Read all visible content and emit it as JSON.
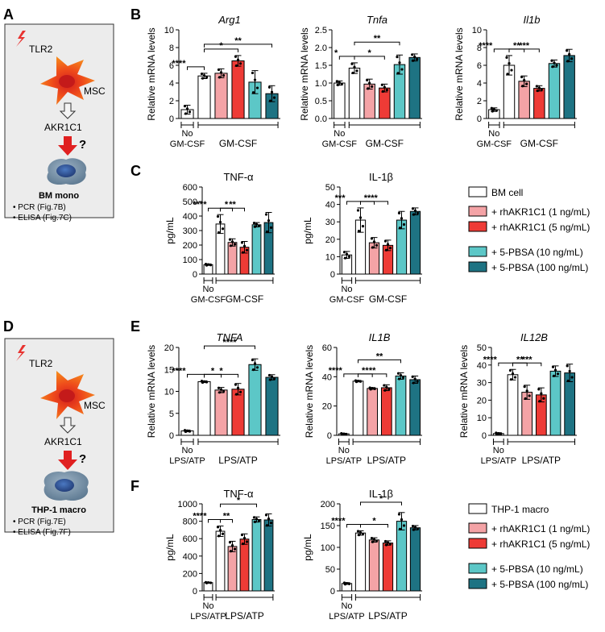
{
  "panels": {
    "A": {
      "letter": "A",
      "top_label": "TLR2",
      "mid_label": "MSC",
      "gene": "AKR1C1",
      "question": "?",
      "cell_name": "BM mono",
      "bullets": [
        "PCR (Fig.7B)",
        "ELISA (Fig.7C)"
      ]
    },
    "D": {
      "letter": "D",
      "top_label": "TLR2",
      "mid_label": "MSC",
      "gene": "AKR1C1",
      "question": "?",
      "cell_name": "THP-1 macro",
      "bullets": [
        "PCR (Fig.7E)",
        "ELISA (Fig.7F)"
      ]
    }
  },
  "legends": [
    {
      "items": [
        "BM cell",
        "+ rhAKR1C1 (1 ng/mL)",
        "+ rhAKR1C1 (5 ng/mL)",
        "+ 5-PBSA (10 ng/mL)",
        "+ 5-PBSA (100 ng/mL)"
      ]
    },
    {
      "items": [
        "THP-1 macro",
        "+ rhAKR1C1 (1 ng/mL)",
        "+ rhAKR1C1 (5 ng/mL)",
        "+ 5-PBSA (10 ng/mL)",
        "+ 5-PBSA (100 ng/mL)"
      ]
    }
  ],
  "colors": [
    "#ffffff",
    "#f4a3a6",
    "#ee3b36",
    "#5cc7c7",
    "#1e7383"
  ],
  "chart_data": [
    {
      "panel": "B",
      "type": "bar",
      "title": "Arg1",
      "title_italic": true,
      "ylabel": "Relative mRNA levels",
      "ylim": [
        0,
        10
      ],
      "yticks": [
        0,
        2,
        4,
        6,
        8,
        10
      ],
      "values": [
        1.0,
        4.8,
        5.1,
        6.5,
        4.1,
        2.8
      ],
      "errors": [
        0.5,
        0.3,
        0.5,
        0.6,
        1.3,
        0.9
      ],
      "control_label": "No GM-CSF",
      "treatment_label": "GM-CSF",
      "significance": [
        {
          "from": 1,
          "to": 3,
          "text": "*"
        },
        {
          "from": 1,
          "to": 5,
          "text": "**"
        },
        {
          "from": 0,
          "to": 1,
          "text": "****"
        }
      ]
    },
    {
      "panel": "B",
      "type": "bar",
      "title": "Tnfa",
      "title_italic": true,
      "ylabel": "Relative mRNA levels",
      "ylim": [
        0,
        2.5
      ],
      "yticks": [
        0,
        0.5,
        1.0,
        1.5,
        2.0,
        2.5
      ],
      "values": [
        1.0,
        1.42,
        0.97,
        0.86,
        1.52,
        1.72
      ],
      "errors": [
        0.06,
        0.15,
        0.14,
        0.11,
        0.27,
        0.1
      ],
      "control_label": "No GM-CSF",
      "treatment_label": "GM-CSF",
      "significance": [
        {
          "from": 1,
          "to": 4,
          "text": "**"
        },
        {
          "from": 0,
          "to": 1,
          "text": "*"
        },
        {
          "from": 1,
          "to": 3,
          "text": "*"
        }
      ]
    },
    {
      "panel": "B",
      "type": "bar",
      "title": "Il1b",
      "title_italic": true,
      "ylabel": "Relative mRNA levels",
      "ylim": [
        0,
        10
      ],
      "yticks": [
        0,
        2,
        4,
        6,
        8,
        10
      ],
      "values": [
        1.0,
        6.0,
        4.2,
        3.4,
        6.2,
        7.1
      ],
      "errors": [
        0.2,
        1.1,
        0.6,
        0.3,
        0.4,
        0.7
      ],
      "control_label": "No GM-CSF",
      "treatment_label": "GM-CSF",
      "significance": [
        {
          "from": 1,
          "to": 3,
          "text": "***"
        },
        {
          "from": 0,
          "to": 1,
          "text": "****"
        },
        {
          "from": 1,
          "to": 2,
          "text": "**"
        }
      ]
    },
    {
      "panel": "C",
      "type": "bar",
      "title": "TNF-α",
      "title_italic": false,
      "ylabel": "pg/mL",
      "ylim": [
        0,
        600
      ],
      "yticks": [
        0,
        100,
        200,
        300,
        400,
        500,
        600
      ],
      "values": [
        65,
        345,
        218,
        185,
        340,
        355
      ],
      "errors": [
        5,
        65,
        25,
        40,
        15,
        70
      ],
      "control_label": "No GM-CSF",
      "treatment_label": "GM-CSF",
      "significance": [
        {
          "from": 1,
          "to": 3,
          "text": "**"
        },
        {
          "from": 0,
          "to": 1,
          "text": "****"
        },
        {
          "from": 1,
          "to": 2,
          "text": "*"
        }
      ]
    },
    {
      "panel": "C",
      "type": "bar",
      "title": "IL-1β",
      "title_italic": false,
      "ylabel": "pg/mL",
      "ylim": [
        0,
        50
      ],
      "yticks": [
        0,
        10,
        20,
        30,
        40,
        50
      ],
      "values": [
        11,
        31,
        18,
        16.5,
        31,
        36
      ],
      "errors": [
        2,
        7,
        3,
        3,
        5,
        2
      ],
      "control_label": "No GM-CSF",
      "treatment_label": "GM-CSF",
      "significance": [
        {
          "from": 1,
          "to": 3,
          "text": "**"
        },
        {
          "from": 0,
          "to": 1,
          "text": "***"
        },
        {
          "from": 1,
          "to": 2,
          "text": "**"
        }
      ]
    },
    {
      "panel": "E",
      "type": "bar",
      "title": "TNFA",
      "title_italic": true,
      "ylabel": "Relative mRNA levels",
      "ylim": [
        0,
        20
      ],
      "yticks": [
        0,
        5,
        10,
        15,
        20
      ],
      "values": [
        1.0,
        12.2,
        10.3,
        10.5,
        16.1,
        13.2
      ],
      "errors": [
        0.2,
        0.2,
        0.6,
        1.3,
        1.3,
        0.6
      ],
      "control_label": "No LPS/ATP",
      "treatment_label": "LPS/ATP",
      "significance": [
        {
          "from": 1,
          "to": 4,
          "text": "****"
        },
        {
          "from": 1,
          "to": 3,
          "text": "*"
        },
        {
          "from": 0,
          "to": 1,
          "text": "****"
        },
        {
          "from": 1,
          "to": 2,
          "text": "*"
        }
      ]
    },
    {
      "panel": "E",
      "type": "bar",
      "title": "IL1B",
      "title_italic": true,
      "ylabel": "Relative mRNA levels",
      "ylim": [
        0,
        60
      ],
      "yticks": [
        0,
        20,
        40,
        60
      ],
      "values": [
        1.0,
        37,
        32,
        32.5,
        40.5,
        38
      ],
      "errors": [
        0.4,
        0.5,
        0.6,
        2.0,
        2.2,
        2.5
      ],
      "control_label": "No LPS/ATP",
      "treatment_label": "LPS/ATP",
      "significance": [
        {
          "from": 1,
          "to": 4,
          "text": "**"
        },
        {
          "from": 1,
          "to": 3,
          "text": "**"
        },
        {
          "from": 0,
          "to": 1,
          "text": "****"
        },
        {
          "from": 1,
          "to": 2,
          "text": "**"
        }
      ]
    },
    {
      "panel": "E",
      "type": "bar",
      "title": "IL12B",
      "title_italic": true,
      "ylabel": "Relative mRNA levels",
      "ylim": [
        0,
        50
      ],
      "yticks": [
        0,
        10,
        20,
        30,
        40,
        50
      ],
      "values": [
        1.0,
        34.5,
        24.5,
        23,
        36.5,
        35.5
      ],
      "errors": [
        0.5,
        3,
        4,
        4,
        3,
        5
      ],
      "control_label": "No LPS/ATP",
      "treatment_label": "LPS/ATP",
      "significance": [
        {
          "from": 1,
          "to": 3,
          "text": "***"
        },
        {
          "from": 0,
          "to": 1,
          "text": "****"
        },
        {
          "from": 1,
          "to": 2,
          "text": "**"
        }
      ]
    },
    {
      "panel": "F",
      "type": "bar",
      "title": "TNF-α",
      "title_italic": false,
      "ylabel": "pg/mL",
      "ylim": [
        0,
        1000
      ],
      "yticks": [
        0,
        200,
        400,
        600,
        800,
        1000
      ],
      "values": [
        95,
        685,
        510,
        595,
        820,
        815
      ],
      "errors": [
        5,
        60,
        60,
        60,
        30,
        70
      ],
      "control_label": "No LPS/ATP",
      "treatment_label": "LPS/ATP",
      "significance": [
        {
          "from": 1,
          "to": 4,
          "text": "*"
        },
        {
          "from": 0,
          "to": 1,
          "text": "****"
        },
        {
          "from": 1,
          "to": 2,
          "text": "**"
        }
      ]
    },
    {
      "panel": "F",
      "type": "bar",
      "title": "IL-1β",
      "title_italic": false,
      "ylabel": "pg/mL",
      "ylim": [
        0,
        200
      ],
      "yticks": [
        0,
        50,
        100,
        150,
        200
      ],
      "values": [
        17,
        133,
        117,
        110,
        160,
        145
      ],
      "errors": [
        2,
        5,
        5,
        5,
        20,
        5
      ],
      "control_label": "No LPS/ATP",
      "treatment_label": "LPS/ATP",
      "significance": [
        {
          "from": 1,
          "to": 4,
          "text": "*"
        },
        {
          "from": 1,
          "to": 3,
          "text": "*"
        },
        {
          "from": 0,
          "to": 1,
          "text": "****"
        }
      ]
    }
  ]
}
